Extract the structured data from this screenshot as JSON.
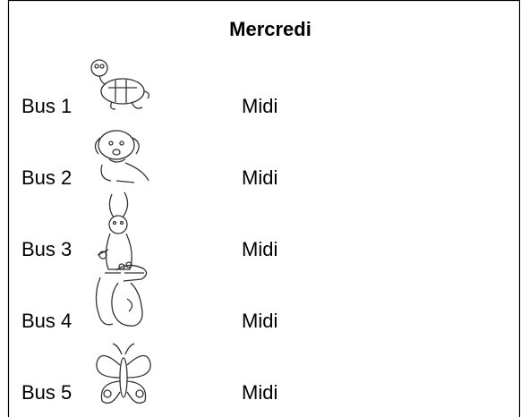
{
  "title": "Mercredi",
  "rows": [
    {
      "bus": "Bus 1",
      "time": "Midi"
    },
    {
      "bus": "Bus 2",
      "time": "Midi"
    },
    {
      "bus": "Bus 3",
      "time": "Midi"
    },
    {
      "bus": "Bus 4",
      "time": "Midi"
    },
    {
      "bus": "Bus 5",
      "time": "Midi"
    }
  ]
}
